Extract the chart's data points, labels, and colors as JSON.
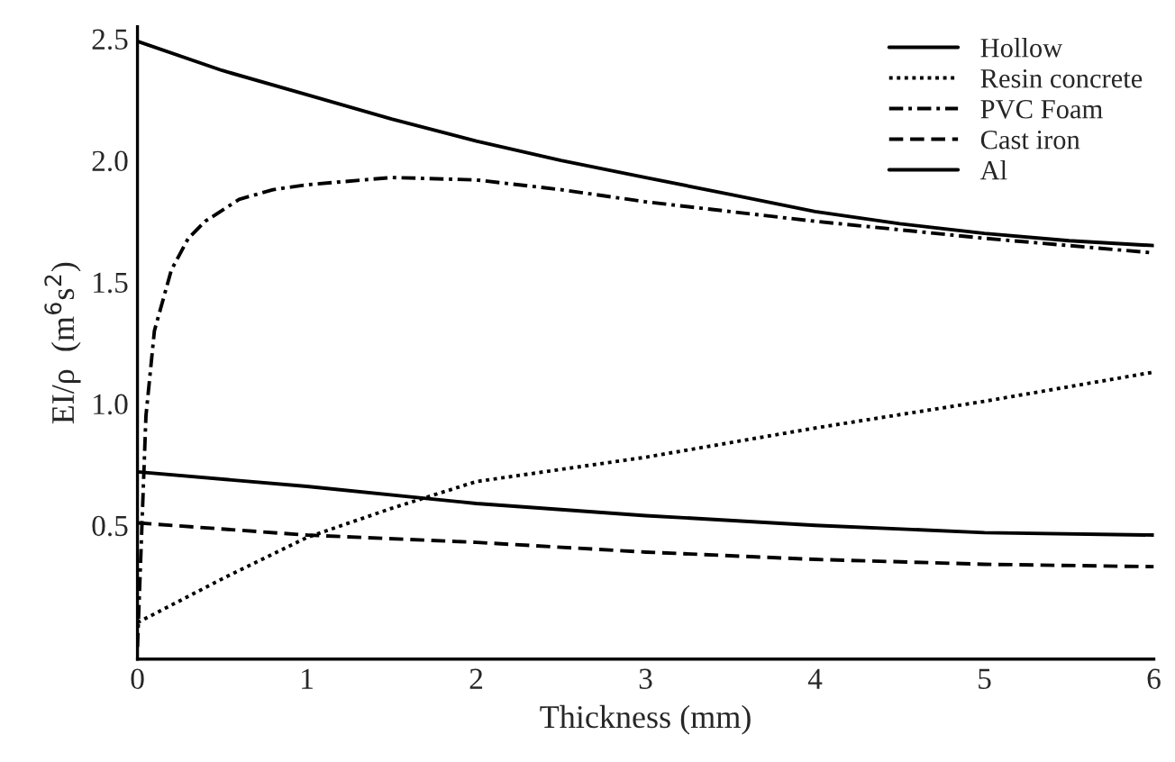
{
  "chart_data": {
    "type": "line",
    "xlabel": "Thickness (mm)",
    "ylabel": "EI/ρ  (m$^{6}$s$^{2}$)",
    "xlim": [
      0,
      6
    ],
    "xticks": [
      0,
      1,
      2,
      3,
      4,
      5,
      6
    ],
    "ylim": [
      -0.05,
      2.55
    ],
    "yticks": [
      0.5,
      {
        "value": 1,
        "label": "1.0"
      },
      1.5,
      {
        "value": 2,
        "label": "2.0"
      },
      2.5
    ],
    "grid": false,
    "legend": "top right",
    "marker": "none",
    "series": [
      {
        "name": "Hollow",
        "color": "#000000",
        "line_style": "solid",
        "x": [
          0,
          0.5,
          1,
          1.5,
          2,
          2.5,
          3,
          3.5,
          4,
          4.5,
          5,
          5.5,
          6
        ],
        "values": [
          2.49,
          2.37,
          2.27,
          2.17,
          2.08,
          2.0,
          1.93,
          1.86,
          1.79,
          1.74,
          1.7,
          1.67,
          1.65
        ]
      },
      {
        "name": "Resin concrete",
        "color": "#000000",
        "line_style": "dotted",
        "x": [
          0,
          0.5,
          1,
          1.5,
          2,
          3,
          4,
          5,
          6
        ],
        "values": [
          0.1,
          0.28,
          0.45,
          0.57,
          0.68,
          0.78,
          0.9,
          1.01,
          1.13
        ]
      },
      {
        "name": "PVC Foam",
        "color": "#000000",
        "line_style": "dashdot",
        "x": [
          0,
          0.05,
          0.1,
          0.2,
          0.3,
          0.4,
          0.6,
          0.8,
          1,
          1.5,
          2,
          2.5,
          3,
          4,
          5,
          6
        ],
        "values": [
          0.0,
          0.95,
          1.3,
          1.55,
          1.68,
          1.75,
          1.84,
          1.88,
          1.9,
          1.93,
          1.92,
          1.88,
          1.83,
          1.75,
          1.68,
          1.62
        ]
      },
      {
        "name": "Cast iron",
        "color": "#000000",
        "line_style": "dashed",
        "x": [
          0,
          1,
          2,
          3,
          4,
          5,
          6
        ],
        "values": [
          0.51,
          0.46,
          0.43,
          0.39,
          0.36,
          0.34,
          0.33
        ]
      },
      {
        "name": "Al",
        "color": "#000000",
        "line_style": "solid",
        "x": [
          0,
          1,
          2,
          3,
          4,
          5,
          6
        ],
        "values": [
          0.72,
          0.66,
          0.59,
          0.54,
          0.5,
          0.47,
          0.46
        ]
      }
    ]
  }
}
